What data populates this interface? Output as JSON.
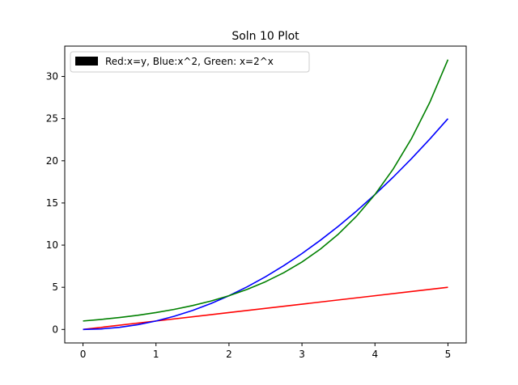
{
  "chart_data": {
    "type": "line",
    "title": "Soln 10 Plot",
    "xlabel": "",
    "ylabel": "",
    "xlim": [
      -0.25,
      5.25
    ],
    "ylim": [
      -1.6,
      33.6
    ],
    "x_ticks": [
      0,
      1,
      2,
      3,
      4,
      5
    ],
    "y_ticks": [
      0,
      5,
      10,
      15,
      20,
      25,
      30
    ],
    "grid": false,
    "legend": {
      "position": "top-left",
      "label": "Red:x=y, Blue:x^2, Green: x=2^x",
      "swatch_color": "#000000"
    },
    "series": [
      {
        "color": "#ff0000",
        "x": [
          0,
          1,
          2,
          3,
          4,
          5
        ],
        "y": [
          0,
          1,
          2,
          3,
          4,
          5
        ]
      },
      {
        "color": "#0000ff",
        "x": [
          0,
          0.25,
          0.5,
          0.75,
          1,
          1.25,
          1.5,
          1.75,
          2,
          2.25,
          2.5,
          2.75,
          3,
          3.25,
          3.5,
          3.75,
          4,
          4.25,
          4.5,
          4.75,
          5
        ],
        "y": [
          0,
          0.0625,
          0.25,
          0.5625,
          1,
          1.5625,
          2.25,
          3.0625,
          4,
          5.0625,
          6.25,
          7.5625,
          9,
          10.5625,
          12.25,
          14.0625,
          16,
          18.0625,
          20.25,
          22.5625,
          25
        ]
      },
      {
        "color": "#008000",
        "x": [
          0,
          0.25,
          0.5,
          0.75,
          1,
          1.25,
          1.5,
          1.75,
          2,
          2.25,
          2.5,
          2.75,
          3,
          3.25,
          3.5,
          3.75,
          4,
          4.25,
          4.5,
          4.75,
          5
        ],
        "y": [
          1,
          1.189,
          1.414,
          1.682,
          2,
          2.378,
          2.828,
          3.364,
          4,
          4.757,
          5.657,
          6.727,
          8,
          9.514,
          11.314,
          13.454,
          16,
          19.027,
          22.627,
          26.909,
          32
        ]
      }
    ]
  }
}
